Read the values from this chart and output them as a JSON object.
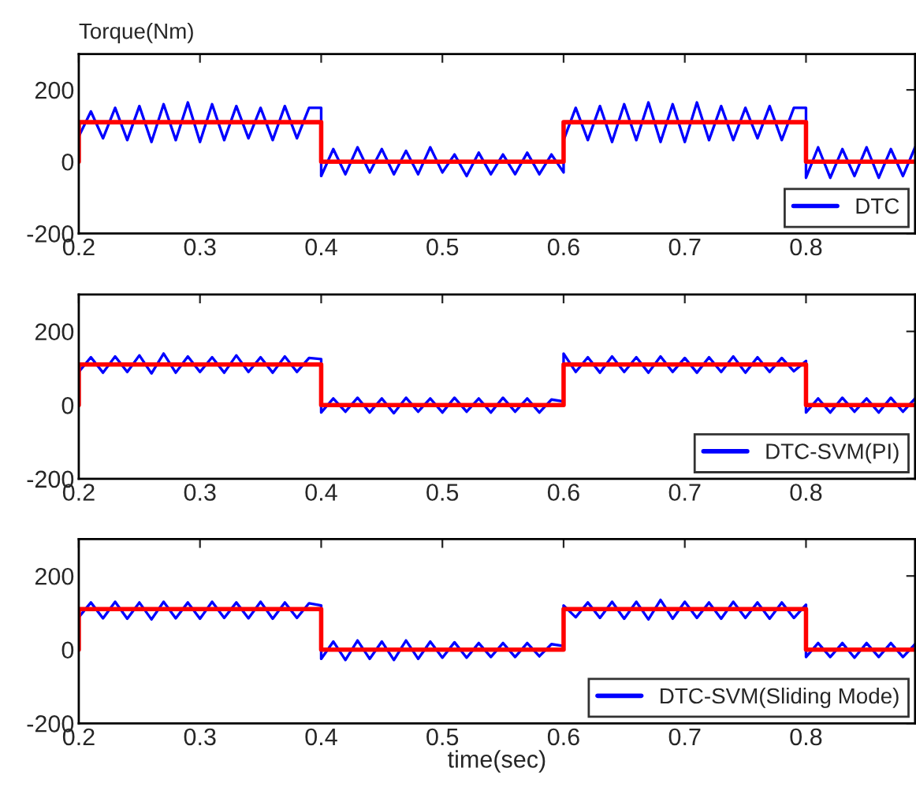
{
  "chart_data": [
    {
      "type": "line",
      "ylabel": "Torque(Nm)",
      "xlim": [
        0.2,
        0.89
      ],
      "xticks": [
        0.2,
        0.3,
        0.4,
        0.5,
        0.6,
        0.7,
        0.8
      ],
      "ylim": [
        -200,
        300
      ],
      "yticks": [
        -200,
        0,
        200
      ],
      "legend": "bottom right",
      "grid": false,
      "series": [
        {
          "name": "DTC",
          "color": "#0000ff",
          "x": [
            0.2,
            0.21,
            0.22,
            0.23,
            0.24,
            0.25,
            0.26,
            0.27,
            0.28,
            0.29,
            0.3,
            0.31,
            0.32,
            0.33,
            0.34,
            0.35,
            0.36,
            0.37,
            0.38,
            0.39,
            0.4,
            0.4,
            0.41,
            0.42,
            0.43,
            0.44,
            0.45,
            0.46,
            0.47,
            0.48,
            0.49,
            0.5,
            0.51,
            0.52,
            0.53,
            0.54,
            0.55,
            0.56,
            0.57,
            0.58,
            0.59,
            0.6,
            0.6,
            0.61,
            0.62,
            0.63,
            0.64,
            0.65,
            0.66,
            0.67,
            0.68,
            0.69,
            0.7,
            0.71,
            0.72,
            0.73,
            0.74,
            0.75,
            0.76,
            0.77,
            0.78,
            0.79,
            0.8,
            0.8,
            0.81,
            0.82,
            0.83,
            0.84,
            0.85,
            0.86,
            0.87,
            0.88,
            0.89
          ],
          "values": [
            70,
            140,
            65,
            150,
            60,
            155,
            55,
            160,
            60,
            165,
            55,
            160,
            60,
            155,
            65,
            150,
            60,
            155,
            65,
            150,
            150,
            -40,
            35,
            -35,
            40,
            -30,
            35,
            -35,
            30,
            -35,
            40,
            -30,
            20,
            -40,
            25,
            -35,
            20,
            -35,
            25,
            -35,
            20,
            -30,
            60,
            150,
            60,
            155,
            55,
            160,
            60,
            165,
            55,
            160,
            55,
            165,
            60,
            155,
            60,
            150,
            65,
            155,
            60,
            150,
            150,
            -45,
            40,
            -45,
            35,
            -40,
            40,
            -45,
            35,
            -40,
            40
          ]
        },
        {
          "color": "#ff0000",
          "type": "step",
          "x": [
            0.2,
            0.2,
            0.4,
            0.6,
            0.8,
            0.89
          ],
          "values": [
            0,
            110,
            0,
            110,
            0,
            0
          ]
        }
      ]
    },
    {
      "type": "line",
      "xlim": [
        0.2,
        0.89
      ],
      "xticks": [
        0.2,
        0.3,
        0.4,
        0.5,
        0.6,
        0.7,
        0.8
      ],
      "ylim": [
        -200,
        300
      ],
      "yticks": [
        -200,
        0,
        200
      ],
      "legend": "bottom right",
      "grid": false,
      "series": [
        {
          "name": "DTC-SVM(PI)",
          "color": "#0000ff",
          "x": [
            0.2,
            0.21,
            0.22,
            0.23,
            0.24,
            0.25,
            0.26,
            0.27,
            0.28,
            0.29,
            0.3,
            0.31,
            0.32,
            0.33,
            0.34,
            0.35,
            0.36,
            0.37,
            0.38,
            0.39,
            0.4,
            0.4,
            0.41,
            0.42,
            0.43,
            0.44,
            0.45,
            0.46,
            0.47,
            0.48,
            0.49,
            0.5,
            0.51,
            0.52,
            0.53,
            0.54,
            0.55,
            0.56,
            0.57,
            0.58,
            0.59,
            0.6,
            0.6,
            0.61,
            0.62,
            0.63,
            0.64,
            0.65,
            0.66,
            0.67,
            0.68,
            0.69,
            0.7,
            0.71,
            0.72,
            0.73,
            0.74,
            0.75,
            0.76,
            0.77,
            0.78,
            0.79,
            0.8,
            0.8,
            0.81,
            0.82,
            0.83,
            0.84,
            0.85,
            0.86,
            0.87,
            0.88,
            0.89
          ],
          "values": [
            90,
            130,
            88,
            132,
            90,
            135,
            86,
            140,
            88,
            132,
            90,
            130,
            88,
            135,
            90,
            130,
            88,
            132,
            90,
            128,
            125,
            -20,
            18,
            -18,
            20,
            -20,
            18,
            -22,
            20,
            -18,
            18,
            -20,
            20,
            -18,
            18,
            -20,
            20,
            -18,
            18,
            -20,
            15,
            10,
            140,
            90,
            130,
            88,
            132,
            90,
            130,
            88,
            132,
            90,
            128,
            88,
            130,
            90,
            132,
            88,
            130,
            90,
            128,
            92,
            120,
            -20,
            18,
            -20,
            20,
            -18,
            18,
            -20,
            20,
            -18,
            18
          ]
        },
        {
          "color": "#ff0000",
          "type": "step",
          "x": [
            0.2,
            0.2,
            0.4,
            0.6,
            0.8,
            0.89
          ],
          "values": [
            0,
            110,
            0,
            110,
            0,
            0
          ]
        }
      ]
    },
    {
      "type": "line",
      "xlabel": "time(sec)",
      "xlim": [
        0.2,
        0.89
      ],
      "xticks": [
        0.2,
        0.3,
        0.4,
        0.5,
        0.6,
        0.7,
        0.8
      ],
      "ylim": [
        -200,
        300
      ],
      "yticks": [
        -200,
        0,
        200
      ],
      "legend": "bottom right",
      "grid": false,
      "series": [
        {
          "name": "DTC-SVM(Sliding Mode)",
          "color": "#0000ff",
          "x": [
            0.2,
            0.21,
            0.22,
            0.23,
            0.24,
            0.25,
            0.26,
            0.27,
            0.28,
            0.29,
            0.3,
            0.31,
            0.32,
            0.33,
            0.34,
            0.35,
            0.36,
            0.37,
            0.38,
            0.39,
            0.4,
            0.4,
            0.41,
            0.42,
            0.43,
            0.44,
            0.45,
            0.46,
            0.47,
            0.48,
            0.49,
            0.5,
            0.51,
            0.52,
            0.53,
            0.54,
            0.55,
            0.56,
            0.57,
            0.58,
            0.59,
            0.6,
            0.6,
            0.61,
            0.62,
            0.63,
            0.64,
            0.65,
            0.66,
            0.67,
            0.68,
            0.69,
            0.7,
            0.71,
            0.72,
            0.73,
            0.74,
            0.75,
            0.76,
            0.77,
            0.78,
            0.79,
            0.8,
            0.8,
            0.81,
            0.82,
            0.83,
            0.84,
            0.85,
            0.86,
            0.87,
            0.88,
            0.89
          ],
          "values": [
            88,
            128,
            85,
            130,
            84,
            128,
            82,
            130,
            85,
            128,
            84,
            130,
            86,
            128,
            85,
            130,
            84,
            128,
            86,
            126,
            120,
            -25,
            22,
            -28,
            25,
            -25,
            22,
            -28,
            25,
            -25,
            22,
            -22,
            20,
            -22,
            18,
            -20,
            18,
            -20,
            18,
            -18,
            15,
            10,
            120,
            88,
            128,
            86,
            130,
            84,
            130,
            82,
            135,
            84,
            130,
            86,
            128,
            84,
            130,
            86,
            128,
            84,
            128,
            86,
            122,
            -20,
            18,
            -20,
            18,
            -22,
            18,
            -20,
            18,
            -20,
            15
          ]
        },
        {
          "color": "#ff0000",
          "type": "step",
          "x": [
            0.2,
            0.2,
            0.4,
            0.6,
            0.8,
            0.89
          ],
          "values": [
            0,
            110,
            0,
            110,
            0,
            0
          ]
        }
      ]
    }
  ]
}
